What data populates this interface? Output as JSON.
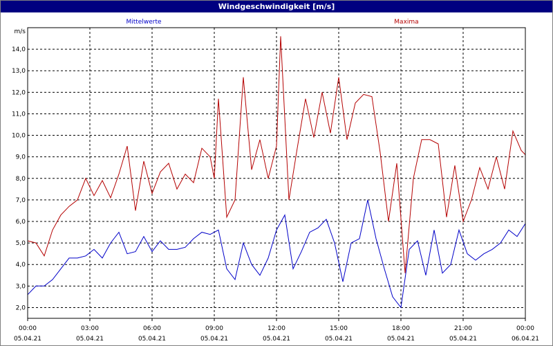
{
  "window": {
    "title": "Windgeschwindigkeit [m/s]"
  },
  "legend": {
    "mean_label": "Mittelwerte",
    "max_label": "Maxima"
  },
  "colors": {
    "mean": "#0000c8",
    "max": "#b40000",
    "title_bg": "#000080",
    "grid": "#000000"
  },
  "chart_data": {
    "type": "line",
    "title": "Windgeschwindigkeit [m/s]",
    "ylabel": "m/s",
    "xlabel": "",
    "ylim": [
      1.5,
      15.0
    ],
    "xlim": [
      0,
      24
    ],
    "yticks": [
      "2,0",
      "3,0",
      "4,0",
      "5,0",
      "6,0",
      "7,0",
      "8,0",
      "9,0",
      "10,0",
      "11,0",
      "12,0",
      "13,0",
      "14,0"
    ],
    "xticks": [
      {
        "time": "00:00",
        "date": "05.04.21"
      },
      {
        "time": "03:00",
        "date": "05.04.21"
      },
      {
        "time": "06:00",
        "date": "05.04.21"
      },
      {
        "time": "09:00",
        "date": "05.04.21"
      },
      {
        "time": "12:00",
        "date": "05.04.21"
      },
      {
        "time": "15:00",
        "date": "05.04.21"
      },
      {
        "time": "18:00",
        "date": "05.04.21"
      },
      {
        "time": "21:00",
        "date": "05.04.21"
      },
      {
        "time": "00:00",
        "date": "06.04.21"
      }
    ],
    "grid": true,
    "legend_position": "top",
    "series": [
      {
        "name": "Mittelwerte",
        "x": [
          0,
          0.4,
          0.8,
          1.2,
          1.6,
          2.0,
          2.4,
          2.8,
          3.2,
          3.6,
          4.0,
          4.4,
          4.8,
          5.2,
          5.6,
          6.0,
          6.4,
          6.8,
          7.2,
          7.6,
          8.0,
          8.4,
          8.8,
          9.0,
          9.2,
          9.6,
          10.0,
          10.4,
          10.8,
          11.2,
          11.6,
          12.0,
          12.4,
          12.8,
          13.2,
          13.6,
          14.0,
          14.4,
          14.8,
          15.2,
          15.6,
          16.0,
          16.4,
          16.8,
          17.2,
          17.6,
          18.0,
          18.4,
          18.8,
          19.2,
          19.6,
          20.0,
          20.4,
          20.8,
          21.2,
          21.6,
          22.0,
          22.4,
          22.8,
          23.2,
          23.6,
          24.0
        ],
        "values": [
          2.6,
          3.0,
          3.0,
          3.3,
          3.8,
          4.3,
          4.3,
          4.4,
          4.7,
          4.3,
          5.0,
          5.5,
          4.5,
          4.6,
          5.3,
          4.6,
          5.1,
          4.7,
          4.7,
          4.8,
          5.2,
          5.5,
          5.4,
          5.5,
          5.6,
          3.8,
          3.3,
          5.0,
          4.0,
          3.5,
          4.3,
          5.6,
          6.3,
          3.8,
          4.6,
          5.5,
          5.7,
          6.1,
          5.0,
          3.2,
          5.0,
          5.2,
          7.0,
          5.2,
          3.8,
          2.5,
          2.0,
          4.7,
          5.1,
          3.5,
          5.6,
          3.6,
          4.0,
          5.6,
          4.5,
          4.2,
          4.5,
          4.7,
          5.0,
          5.6,
          5.3,
          5.9
        ]
      },
      {
        "name": "Maxima",
        "x": [
          0,
          0.4,
          0.8,
          1.2,
          1.6,
          2.0,
          2.4,
          2.8,
          3.2,
          3.6,
          4.0,
          4.4,
          4.8,
          5.2,
          5.6,
          6.0,
          6.4,
          6.8,
          7.2,
          7.6,
          8.0,
          8.4,
          8.8,
          9.0,
          9.2,
          9.6,
          10.0,
          10.4,
          10.8,
          11.2,
          11.6,
          12.0,
          12.2,
          12.6,
          13.0,
          13.4,
          13.8,
          14.2,
          14.6,
          15.0,
          15.4,
          15.8,
          16.2,
          16.6,
          17.0,
          17.4,
          17.8,
          18.2,
          18.6,
          19.0,
          19.4,
          19.8,
          20.2,
          20.6,
          21.0,
          21.4,
          21.8,
          22.2,
          22.6,
          23.0,
          23.4,
          23.8,
          24.0
        ],
        "values": [
          5.1,
          5.0,
          4.4,
          5.6,
          6.3,
          6.7,
          7.0,
          8.0,
          7.2,
          7.9,
          7.1,
          8.2,
          9.5,
          6.5,
          8.8,
          7.3,
          8.3,
          8.7,
          7.5,
          8.2,
          7.8,
          9.4,
          9.0,
          8.0,
          11.7,
          6.2,
          7.0,
          12.7,
          8.4,
          9.8,
          8.0,
          9.5,
          14.6,
          7.0,
          9.4,
          11.7,
          9.9,
          12.0,
          10.1,
          12.7,
          9.8,
          11.5,
          11.9,
          11.8,
          9.2,
          6.0,
          8.7,
          3.6,
          8.0,
          9.8,
          9.8,
          9.6,
          6.2,
          8.6,
          6.0,
          7.0,
          8.5,
          7.5,
          9.0,
          7.5,
          10.2,
          9.3,
          9.1
        ]
      }
    ]
  }
}
